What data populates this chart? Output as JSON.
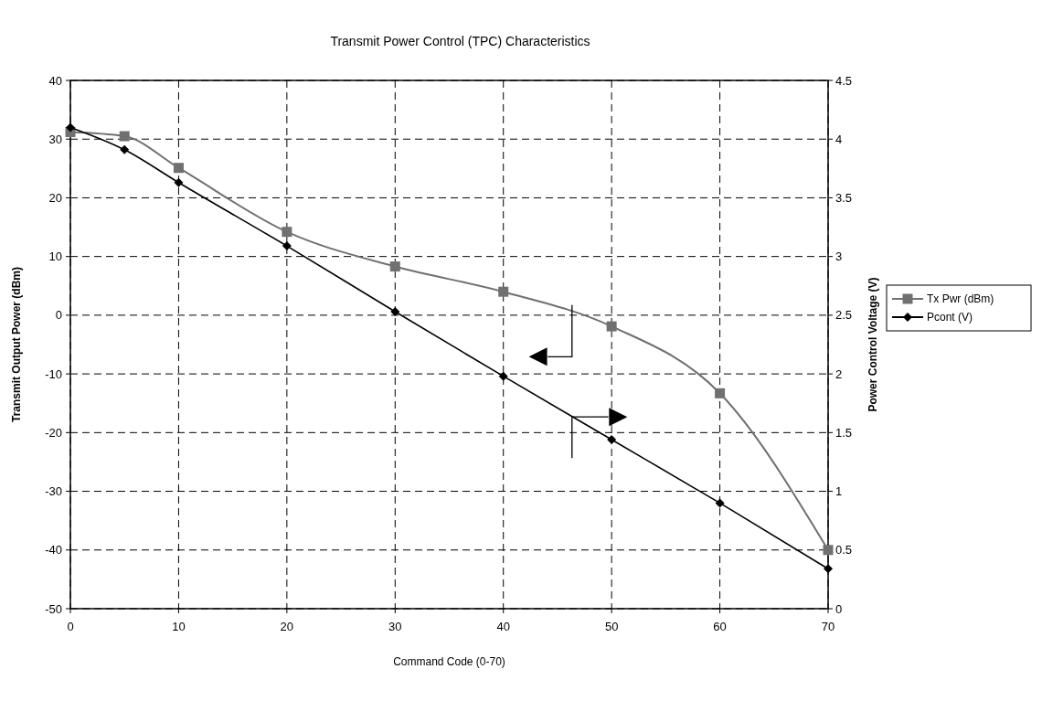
{
  "chart_data": {
    "type": "line",
    "title": "Transmit Power Control (TPC) Characteristics",
    "xlabel": "Command Code (0-70)",
    "ylabel": "Transmit Output Power (dBm)",
    "y2label": "Power Control Voltage (V)",
    "x": [
      0,
      5,
      10,
      20,
      30,
      40,
      50,
      60,
      70
    ],
    "series": [
      {
        "name": "Tx Pwr (dBm)",
        "color": "#707070",
        "marker": "square",
        "values": [
          31.2,
          30.5,
          25.1,
          14.2,
          8.3,
          4.0,
          -1.9,
          -13.3,
          -40.0
        ]
      },
      {
        "name": "Pcont (V)",
        "color": "#000000",
        "marker": "diamond",
        "axis": "y2",
        "values": [
          4.1,
          3.91,
          3.63,
          3.09,
          2.53,
          1.98,
          1.44,
          0.9,
          0.34
        ]
      }
    ],
    "xlim": [
      0,
      70
    ],
    "xticks": [
      0,
      10,
      20,
      30,
      40,
      50,
      60,
      70
    ],
    "ylim": [
      -50,
      40
    ],
    "yticks": [
      -50,
      -40,
      -30,
      -20,
      -10,
      0,
      10,
      20,
      30,
      40
    ],
    "y2lim": [
      0,
      4.5
    ],
    "y2ticks": [
      0,
      0.5,
      1,
      1.5,
      2,
      2.5,
      3,
      3.5,
      4,
      4.5
    ],
    "grid": true,
    "legend": "right",
    "line_style": "solid"
  }
}
